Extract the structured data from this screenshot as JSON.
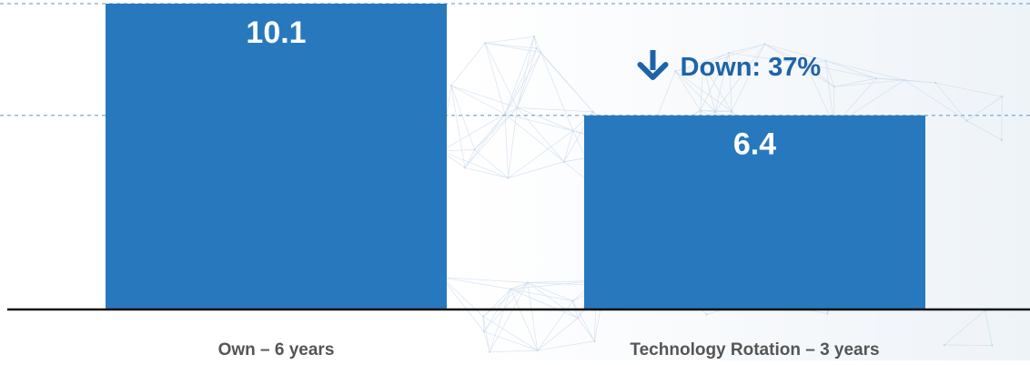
{
  "chart_data": {
    "type": "bar",
    "categories": [
      "Own – 6 years",
      "Technology Rotation – 3 years"
    ],
    "values": [
      10.1,
      6.4
    ],
    "value_labels": [
      "10.1",
      "6.4"
    ],
    "title": "",
    "xlabel": "",
    "ylabel": "",
    "ylim": [
      0,
      10.1
    ],
    "grid": true,
    "annotation": {
      "text": "Down: 37%",
      "icon": "arrow-down-icon",
      "target_category": "Technology Rotation – 3 years"
    },
    "colors": {
      "bar": "#2878BE",
      "annotation": "#1E63A8",
      "value_label": "#FFFFFF",
      "category_label": "#555555",
      "axis": "#111111",
      "grid": "#7FA9D0"
    }
  }
}
